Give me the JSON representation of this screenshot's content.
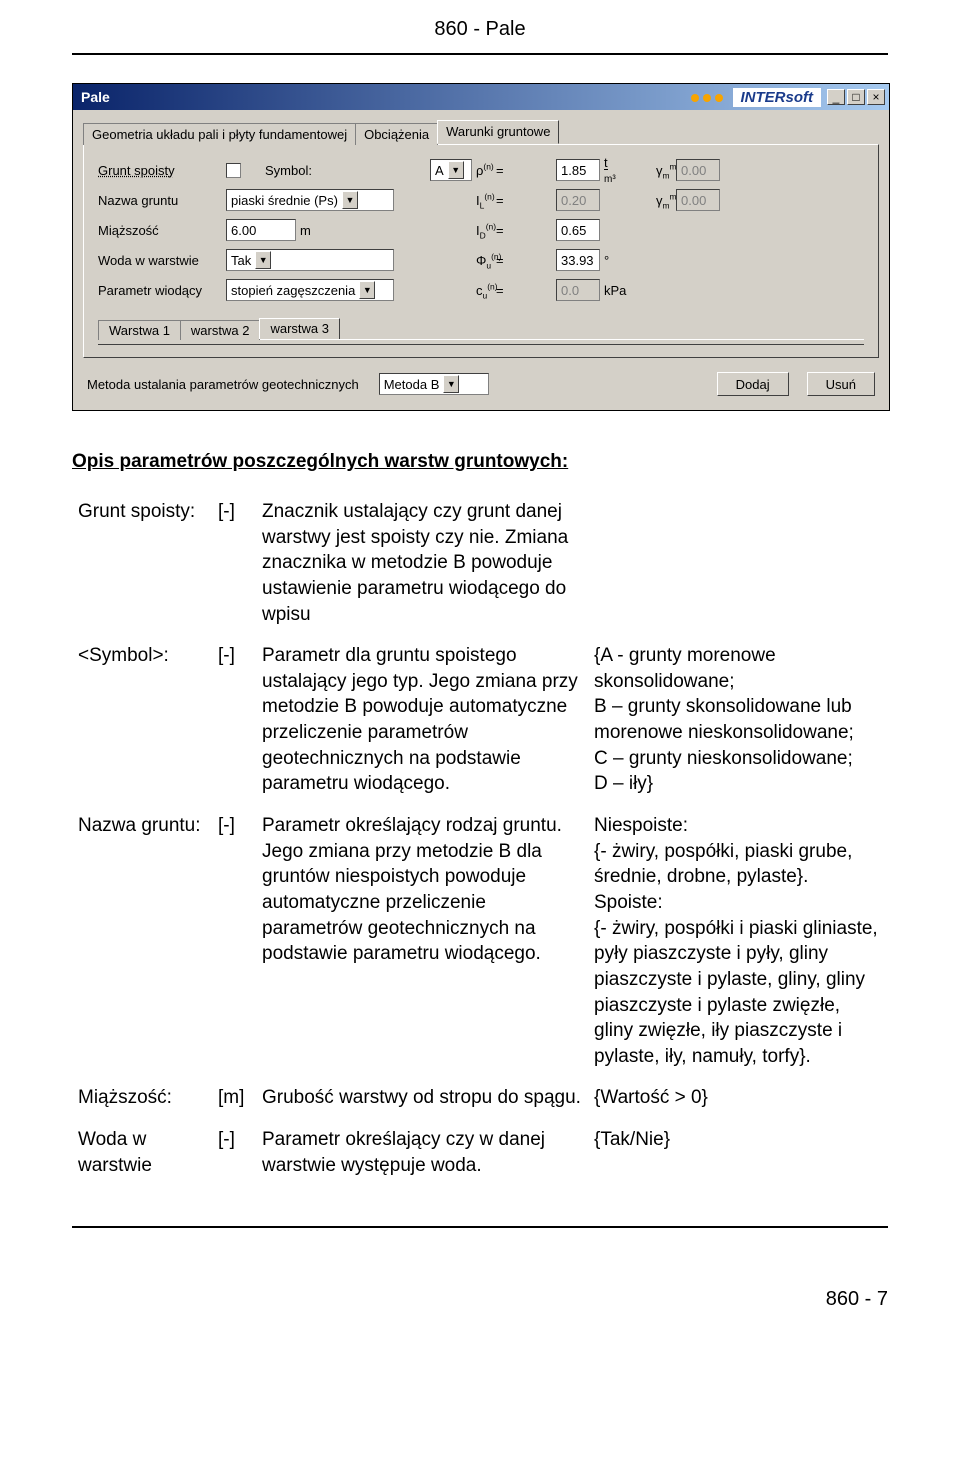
{
  "page": {
    "header": "860 - Pale",
    "footer": "860 - 7"
  },
  "dialog": {
    "title": "Pale",
    "brand": "INTERsoft",
    "tabs": [
      "Geometria układu pali i płyty fundamentowej",
      "Obciążenia",
      "Warunki gruntowe"
    ],
    "active_tab": 2,
    "labels": {
      "grunt_spoisty": "Grunt spoisty",
      "symbol": "Symbol:",
      "nazwa_gruntu": "Nazwa gruntu",
      "miazszosc": "Miąższość",
      "woda": "Woda w warstwie",
      "parametr_wiodacy": "Parametr wiodący",
      "metoda_label": "Metoda ustalania parametrów geotechnicznych"
    },
    "values": {
      "symbol": "A",
      "nazwa_gruntu": "piaski średnie (Ps)",
      "miazszosc": "6.00",
      "miazszosc_unit": "m",
      "woda": "Tak",
      "parametr_wiodacy": "stopień zagęszczenia",
      "rho": "1.85",
      "rho_unit_top": "t",
      "rho_unit_bot": "m³",
      "IL": "0.20",
      "ID": "0.65",
      "phi": "33.93",
      "phi_unit": "°",
      "cu": "0.0",
      "cu_unit": "kPa",
      "gamma_max": "0.00",
      "gamma_min": "0.00",
      "metoda": "Metoda B"
    },
    "sym": {
      "rho": "ρ",
      "rho_sup": "(n)",
      "il": "I",
      "il_sub": "L",
      "il_sup": "(n)",
      "id": "I",
      "id_sub": "D",
      "id_sup": "(n)",
      "phi": "Φ",
      "phi_sub": "u",
      "phi_sup": "(n)",
      "cu": "c",
      "cu_sub": "u",
      "cu_sup": "(n)",
      "gmax": "γ",
      "gmax_sub": "m",
      "gmax_sup": "max",
      "gmin": "γ",
      "gmin_sub": "m",
      "gmin_sup": "min"
    },
    "sub_tabs": [
      "Warstwa 1",
      "warstwa 2",
      "warstwa 3"
    ],
    "active_sub_tab": 2,
    "buttons": {
      "dodaj": "Dodaj",
      "usun": "Usuń"
    }
  },
  "body": {
    "section_title": "Opis parametrów poszczególnych warstw gruntowych:",
    "rows": [
      {
        "name": "Grunt spoisty:",
        "unit": "[-]",
        "desc": "Znacznik ustalający czy grunt danej warstwy jest spoisty czy nie. Zmiana znacznika w metodzie B powoduje ustawienie parametru wiodącego do wpisu",
        "note": ""
      },
      {
        "name": "<Symbol>:",
        "unit": "[-]",
        "desc": "Parametr dla gruntu spoistego ustalający jego typ. Jego zmiana przy metodzie B powoduje automatyczne przeliczenie parametrów geotechnicznych na podstawie parametru wiodącego.",
        "note": "{A - grunty morenowe skonsolidowane;\nB – grunty skonsolidowane lub morenowe nieskonsolidowane;\nC – grunty nieskonsolidowane;\nD – iły}"
      },
      {
        "name": "Nazwa gruntu:",
        "unit": "[-]",
        "desc": "Parametr określający rodzaj gruntu. Jego zmiana przy metodzie B dla gruntów niespoistych powoduje automatyczne przeliczenie parametrów geotechnicznych na podstawie parametru wiodącego.",
        "note": "Niespoiste:\n{- żwiry, pospółki, piaski grube, średnie, drobne, pylaste}.\nSpoiste:\n{- żwiry, pospółki i piaski gliniaste, pyły piaszczyste i pyły, gliny piaszczyste i pylaste, gliny, gliny piaszczyste i pylaste zwięzłe, gliny zwięzłe, iły piaszczyste i pylaste, iły, namuły, torfy}."
      },
      {
        "name": "Miąższość:",
        "unit": "[m]",
        "desc": "Grubość warstwy od stropu do spągu.",
        "note": "{Wartość > 0}"
      },
      {
        "name": "Woda w warstwie",
        "unit": "[-]",
        "desc": "Parametr określający czy w danej warstwie występuje woda.",
        "note": "{Tak/Nie}"
      }
    ]
  }
}
